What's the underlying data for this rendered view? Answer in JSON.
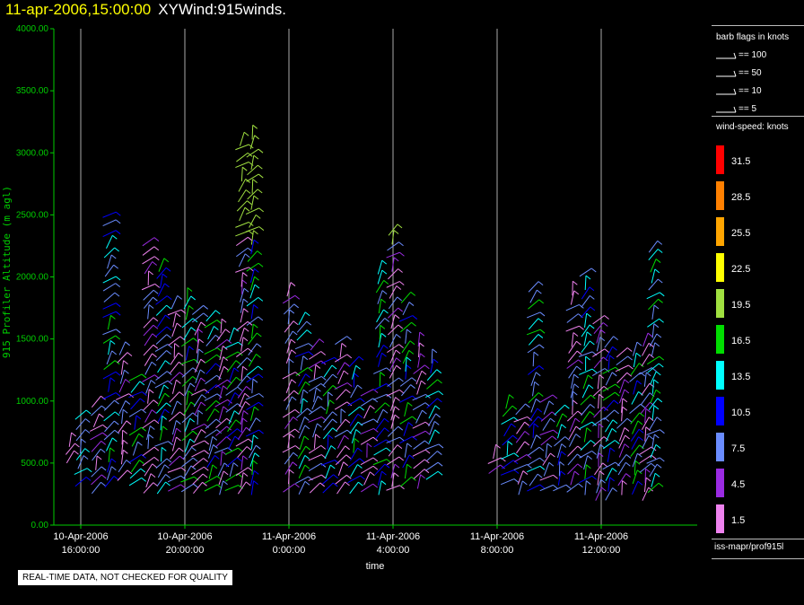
{
  "header": {
    "datetime": "11-apr-2006,15:00:00",
    "product": "XYWind:915winds."
  },
  "notice": "REAL-TIME DATA, NOT CHECKED FOR QUALITY",
  "source": "iss-mapr/prof915l",
  "colors": {
    "axis": "#00cc00",
    "grid": "#aaaaaa",
    "title_date": "#ffff00"
  },
  "chart_data": {
    "type": "scatter",
    "title": "11-apr-2006,15:00:00  XYWind:915winds.",
    "xlabel": "time",
    "ylabel": "915 Profiler Altitude (m agl)",
    "ylim": [
      0,
      4000
    ],
    "yticks": [
      "4000.00",
      "3500.00",
      "3000.00",
      "2500.00",
      "2000.00",
      "1500.00",
      "1000.00",
      "500.00",
      "0.00"
    ],
    "xticks": [
      {
        "hour": 16,
        "label1": "10-Apr-2006",
        "label2": "16:00:00"
      },
      {
        "hour": 20,
        "label1": "10-Apr-2006",
        "label2": "20:00:00"
      },
      {
        "hour": 24,
        "label1": "11-Apr-2006",
        "label2": "0:00:00"
      },
      {
        "hour": 28,
        "label1": "11-Apr-2006",
        "label2": "4:00:00"
      },
      {
        "hour": 32,
        "label1": "11-Apr-2006",
        "label2": "8:00:00"
      },
      {
        "hour": 36,
        "label1": "11-Apr-2006",
        "label2": "12:00:00"
      }
    ],
    "xlim": [
      15.0,
      38.2
    ],
    "grid": true,
    "barb_legend": {
      "title": "barb flags in knots",
      "entries": [
        "== 100",
        "== 50",
        "== 10",
        "== 5"
      ]
    },
    "speed_legend": {
      "title": "wind-speed: knots",
      "bins": [
        {
          "label": "31.5",
          "color": "#ff0000"
        },
        {
          "label": "28.5",
          "color": "#ff8000"
        },
        {
          "label": "25.5",
          "color": "#ffa500"
        },
        {
          "label": "22.5",
          "color": "#ffff00"
        },
        {
          "label": "19.5",
          "color": "#a0e040"
        },
        {
          "label": "16.5",
          "color": "#00dd00"
        },
        {
          "label": "13.5",
          "color": "#00ffff"
        },
        {
          "label": "10.5",
          "color": "#0000ff"
        },
        {
          "label": "7.5",
          "color": "#6a8cff"
        },
        {
          "label": "4.5",
          "color": "#9a2be2"
        },
        {
          "label": "1.5",
          "color": "#ee82ee"
        }
      ]
    },
    "columns": [
      {
        "t": 15.6,
        "z0": 550,
        "z1": 700
      },
      {
        "t": 16.0,
        "z0": 350,
        "z1": 950
      },
      {
        "t": 16.6,
        "z0": 300,
        "z1": 1000
      },
      {
        "t": 17.1,
        "z0": 350,
        "z1": 2550
      },
      {
        "t": 17.6,
        "z0": 400,
        "z1": 1450
      },
      {
        "t": 18.1,
        "z0": 350,
        "z1": 1200
      },
      {
        "t": 18.6,
        "z0": 300,
        "z1": 2350
      },
      {
        "t": 19.1,
        "z0": 300,
        "z1": 2150
      },
      {
        "t": 19.6,
        "z0": 300,
        "z1": 1850
      },
      {
        "t": 20.1,
        "z0": 300,
        "z1": 1900
      },
      {
        "t": 20.5,
        "z0": 300,
        "z1": 1800
      },
      {
        "t": 21.0,
        "z0": 300,
        "z1": 1700
      },
      {
        "t": 21.4,
        "z0": 300,
        "z1": 1650
      },
      {
        "t": 21.8,
        "z0": 300,
        "z1": 1600
      },
      {
        "t": 22.2,
        "z0": 300,
        "z1": 3150
      },
      {
        "t": 22.6,
        "z0": 300,
        "z1": 3200
      },
      {
        "t": 24.0,
        "z0": 300,
        "z1": 1900
      },
      {
        "t": 24.5,
        "z0": 300,
        "z1": 1700
      },
      {
        "t": 25.0,
        "z0": 300,
        "z1": 1500
      },
      {
        "t": 25.5,
        "z0": 300,
        "z1": 1350
      },
      {
        "t": 26.0,
        "z0": 300,
        "z1": 1500
      },
      {
        "t": 26.5,
        "z0": 300,
        "z1": 1350
      },
      {
        "t": 27.0,
        "z0": 300,
        "z1": 1100
      },
      {
        "t": 27.5,
        "z0": 300,
        "z1": 2150
      },
      {
        "t": 28.0,
        "z0": 300,
        "z1": 2450
      },
      {
        "t": 28.5,
        "z0": 350,
        "z1": 1900
      },
      {
        "t": 29.0,
        "z0": 350,
        "z1": 1500
      },
      {
        "t": 29.5,
        "z0": 400,
        "z1": 1400
      },
      {
        "t": 31.9,
        "z0": 450,
        "z1": 600
      },
      {
        "t": 32.4,
        "z0": 350,
        "z1": 1050
      },
      {
        "t": 32.9,
        "z0": 300,
        "z1": 1000
      },
      {
        "t": 33.4,
        "z0": 300,
        "z1": 2000
      },
      {
        "t": 33.9,
        "z0": 300,
        "z1": 1050
      },
      {
        "t": 34.4,
        "z0": 300,
        "z1": 1000
      },
      {
        "t": 34.9,
        "z0": 300,
        "z1": 1950
      },
      {
        "t": 35.4,
        "z0": 300,
        "z1": 2050
      },
      {
        "t": 35.9,
        "z0": 250,
        "z1": 1700
      },
      {
        "t": 36.3,
        "z0": 250,
        "z1": 1550
      },
      {
        "t": 36.8,
        "z0": 300,
        "z1": 1400
      },
      {
        "t": 37.3,
        "z0": 300,
        "z1": 1450
      },
      {
        "t": 37.7,
        "z0": 250,
        "z1": 1550
      },
      {
        "t": 38.0,
        "z0": 300,
        "z1": 2300
      }
    ]
  }
}
